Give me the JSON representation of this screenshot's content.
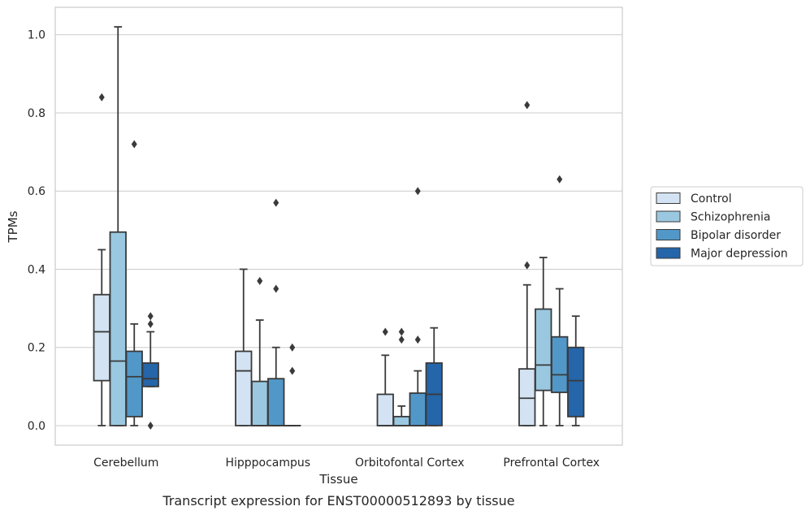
{
  "chart_data": {
    "type": "box",
    "title": "",
    "caption": "Transcript expression for ENST00000512893 by tissue",
    "xlabel": "Tissue",
    "ylabel": "TPMs",
    "ylim": [
      -0.05,
      1.07
    ],
    "yticks": [
      0.0,
      0.2,
      0.4,
      0.6,
      0.8,
      1.0
    ],
    "grid": "horizontal",
    "legend_position": "right",
    "categories": [
      "Cerebellum",
      "Hipppocampus",
      "Orbitofontal Cortex",
      "Prefrontal Cortex"
    ],
    "series": [
      {
        "name": "Control",
        "color": "#d3e3f3",
        "boxes": [
          {
            "whislo": 0.0,
            "q1": 0.115,
            "med": 0.24,
            "q3": 0.335,
            "whishi": 0.45,
            "fliers": [
              0.84
            ]
          },
          {
            "whislo": 0.0,
            "q1": 0.0,
            "med": 0.14,
            "q3": 0.19,
            "whishi": 0.4,
            "fliers": []
          },
          {
            "whislo": 0.0,
            "q1": 0.0,
            "med": 0.0,
            "q3": 0.08,
            "whishi": 0.18,
            "fliers": [
              0.24
            ]
          },
          {
            "whislo": 0.0,
            "q1": 0.0,
            "med": 0.07,
            "q3": 0.145,
            "whishi": 0.36,
            "fliers": [
              0.41,
              0.82
            ]
          }
        ]
      },
      {
        "name": "Schizophrenia",
        "color": "#9ac8e0",
        "boxes": [
          {
            "whislo": 0.0,
            "q1": 0.0,
            "med": 0.165,
            "q3": 0.495,
            "whishi": 1.02,
            "fliers": []
          },
          {
            "whislo": 0.0,
            "q1": 0.0,
            "med": 0.0,
            "q3": 0.113,
            "whishi": 0.27,
            "fliers": [
              0.37
            ]
          },
          {
            "whislo": 0.0,
            "q1": 0.0,
            "med": 0.0,
            "q3": 0.023,
            "whishi": 0.05,
            "fliers": [
              0.22,
              0.24
            ]
          },
          {
            "whislo": 0.0,
            "q1": 0.09,
            "med": 0.155,
            "q3": 0.298,
            "whishi": 0.43,
            "fliers": []
          }
        ]
      },
      {
        "name": "Bipolar disorder",
        "color": "#5198c9",
        "boxes": [
          {
            "whislo": 0.0,
            "q1": 0.023,
            "med": 0.125,
            "q3": 0.19,
            "whishi": 0.26,
            "fliers": [
              0.72
            ]
          },
          {
            "whislo": 0.0,
            "q1": 0.0,
            "med": 0.0,
            "q3": 0.12,
            "whishi": 0.2,
            "fliers": [
              0.35,
              0.57
            ]
          },
          {
            "whislo": 0.0,
            "q1": 0.0,
            "med": 0.0,
            "q3": 0.083,
            "whishi": 0.14,
            "fliers": [
              0.22,
              0.6
            ]
          },
          {
            "whislo": 0.0,
            "q1": 0.085,
            "med": 0.13,
            "q3": 0.227,
            "whishi": 0.35,
            "fliers": [
              0.63
            ]
          }
        ]
      },
      {
        "name": "Major depression",
        "color": "#2565a9",
        "boxes": [
          {
            "whislo": 0.1,
            "q1": 0.1,
            "med": 0.12,
            "q3": 0.16,
            "whishi": 0.24,
            "fliers": [
              0.0,
              0.26,
              0.28
            ]
          },
          {
            "whislo": 0.0,
            "q1": 0.0,
            "med": 0.0,
            "q3": 0.0,
            "whishi": 0.0,
            "fliers": [
              0.14,
              0.2
            ]
          },
          {
            "whislo": 0.0,
            "q1": 0.0,
            "med": 0.08,
            "q3": 0.16,
            "whishi": 0.25,
            "fliers": []
          },
          {
            "whislo": 0.0,
            "q1": 0.023,
            "med": 0.115,
            "q3": 0.2,
            "whishi": 0.28,
            "fliers": []
          }
        ]
      }
    ]
  }
}
